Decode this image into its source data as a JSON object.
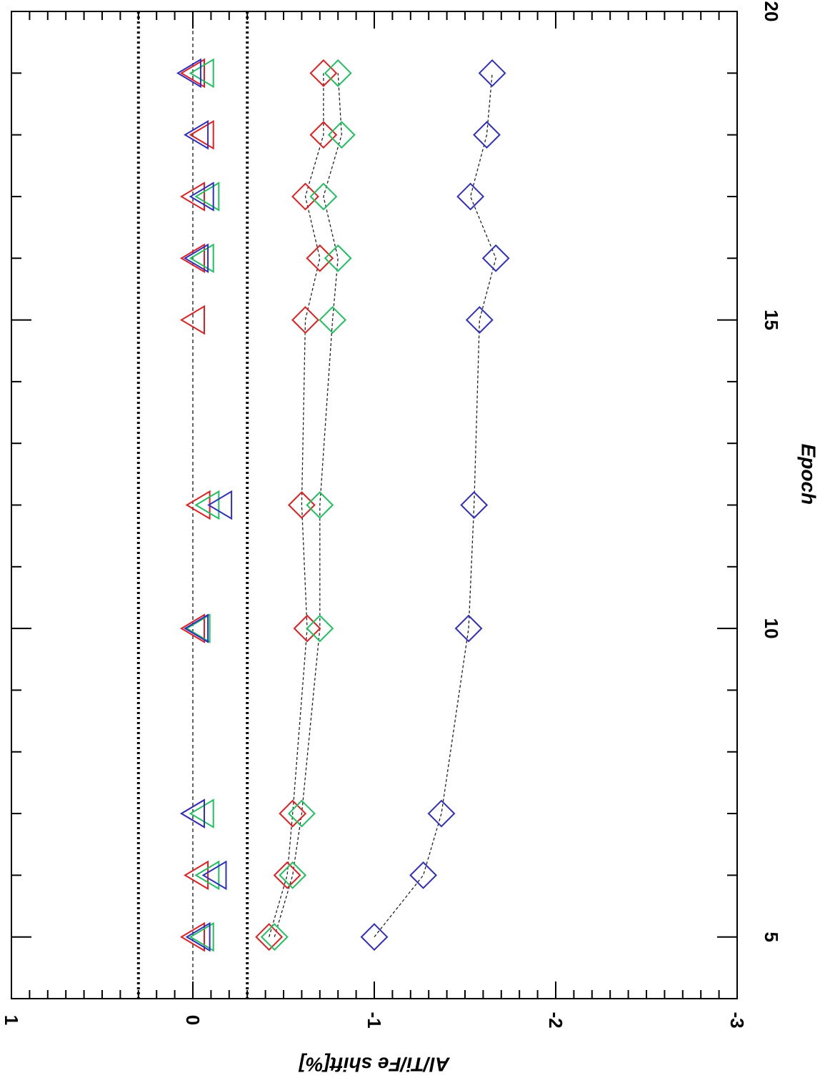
{
  "chart_data": {
    "type": "scatter",
    "title": "",
    "xlabel": "Epoch",
    "ylabel": "Al/Ti/Fe shift[%]",
    "xlim": [
      4,
      20
    ],
    "ylim": [
      -3,
      1
    ],
    "x_ticks": [
      "5",
      "10",
      "15",
      "20"
    ],
    "y_ticks": [
      "1",
      "0",
      "-1",
      "-2",
      "-3"
    ],
    "grid": false,
    "reference_lines": [
      {
        "y": 0,
        "style": "thin-dashed"
      },
      {
        "y": 0.3,
        "style": "thick-dotted"
      },
      {
        "y": -0.3,
        "style": "thick-dotted"
      }
    ],
    "series": [
      {
        "marker": "triangle",
        "color": "#e02020",
        "connected": false,
        "x": [
          5,
          6,
          7,
          10,
          12,
          15,
          16,
          17,
          18,
          19
        ],
        "y": [
          0.0,
          -0.02,
          0.0,
          0.0,
          -0.03,
          0.0,
          0.0,
          0.0,
          -0.05,
          0.0
        ]
      },
      {
        "marker": "triangle",
        "color": "#20c060",
        "connected": false,
        "x": [
          5,
          6,
          7,
          10,
          12,
          16,
          17,
          19
        ],
        "y": [
          -0.05,
          -0.08,
          -0.05,
          -0.03,
          -0.08,
          -0.05,
          -0.08,
          -0.05
        ]
      },
      {
        "marker": "triangle",
        "color": "#3030c0",
        "connected": false,
        "x": [
          5,
          6,
          7,
          10,
          12,
          16,
          17,
          18,
          19
        ],
        "y": [
          -0.03,
          -0.12,
          0.0,
          -0.02,
          -0.15,
          -0.02,
          -0.05,
          -0.02,
          0.02
        ]
      },
      {
        "marker": "diamond",
        "color": "#e02020",
        "connected": true,
        "x": [
          5,
          6,
          7,
          10,
          12,
          15,
          16,
          17,
          18,
          19
        ],
        "y": [
          -0.42,
          -0.52,
          -0.55,
          -0.63,
          -0.6,
          -0.62,
          -0.7,
          -0.62,
          -0.72,
          -0.72
        ]
      },
      {
        "marker": "diamond",
        "color": "#20c060",
        "connected": true,
        "x": [
          5,
          6,
          7,
          10,
          12,
          15,
          16,
          17,
          18,
          19
        ],
        "y": [
          -0.45,
          -0.55,
          -0.6,
          -0.7,
          -0.7,
          -0.77,
          -0.8,
          -0.72,
          -0.82,
          -0.8
        ]
      },
      {
        "marker": "diamond",
        "color": "#3030c0",
        "connected": true,
        "x": [
          5,
          6,
          7,
          10,
          12,
          15,
          16,
          17,
          18,
          19
        ],
        "y": [
          -1.0,
          -1.27,
          -1.37,
          -1.52,
          -1.55,
          -1.58,
          -1.67,
          -1.53,
          -1.62,
          -1.65
        ]
      }
    ]
  }
}
